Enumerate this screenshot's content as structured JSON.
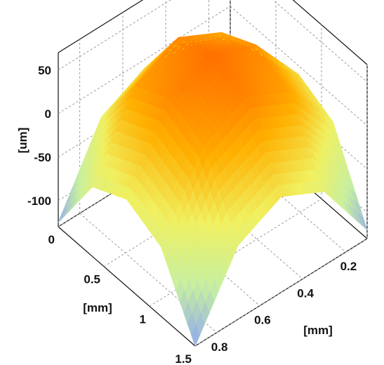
{
  "chart_data": {
    "type": "surface",
    "x_axis": {
      "label": "[mm]",
      "range": [
        0,
        1.5
      ],
      "ticks": [
        0,
        0.5,
        1,
        1.5
      ],
      "tick_labels": [
        "0",
        "0.5",
        "1",
        "1.5"
      ]
    },
    "y_axis": {
      "label": "[mm]",
      "range": [
        0.1,
        0.9
      ],
      "ticks": [
        0.2,
        0.4,
        0.6,
        0.8
      ],
      "tick_labels": [
        "0.2",
        "0.4",
        "0.6",
        "0.8"
      ]
    },
    "z_axis": {
      "label": "[um]",
      "range": [
        -130,
        70
      ],
      "ticks": [
        50,
        0,
        -50,
        -100
      ],
      "tick_labels": [
        "50",
        "0",
        "-50",
        "-100"
      ]
    },
    "surface": {
      "x": [
        0,
        0.375,
        0.75,
        1.125,
        1.5
      ],
      "y": [
        0.1,
        0.3,
        0.5,
        0.7,
        0.9
      ],
      "z": [
        [
          -105,
          -35,
          -10,
          -35,
          -125
        ],
        [
          -30,
          35,
          60,
          35,
          -50
        ],
        [
          -10,
          55,
          75,
          55,
          -30
        ],
        [
          -30,
          35,
          60,
          35,
          -50
        ],
        [
          -120,
          -45,
          -20,
          -45,
          -130
        ]
      ]
    },
    "colormap": [
      "#8fa8f0",
      "#c8f0a0",
      "#f0f060",
      "#ffb000",
      "#ff7000"
    ],
    "grid": true
  }
}
